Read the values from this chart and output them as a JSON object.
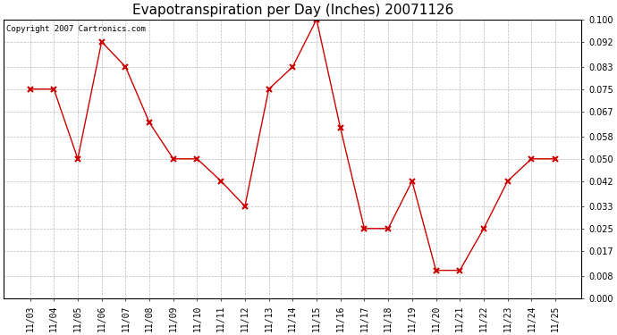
{
  "title": "Evapotranspiration per Day (Inches) 20071126",
  "copyright_text": "Copyright 2007 Cartronics.com",
  "dates": [
    "11/03",
    "11/04",
    "11/05",
    "11/06",
    "11/07",
    "11/08",
    "11/09",
    "11/10",
    "11/11",
    "11/12",
    "11/13",
    "11/14",
    "11/15",
    "11/16",
    "11/17",
    "11/18",
    "11/19",
    "11/20",
    "11/21",
    "11/22",
    "11/23",
    "11/24",
    "11/25"
  ],
  "values": [
    0.075,
    0.075,
    0.05,
    0.092,
    0.083,
    0.063,
    0.05,
    0.05,
    0.042,
    0.033,
    0.075,
    0.083,
    0.1,
    0.061,
    0.025,
    0.025,
    0.042,
    0.01,
    0.01,
    0.025,
    0.042,
    0.05,
    0.05
  ],
  "line_color": "#cc0000",
  "marker": "x",
  "marker_size": 4,
  "marker_linewidth": 1.5,
  "ylim": [
    0.0,
    0.1
  ],
  "yticks": [
    0.0,
    0.008,
    0.017,
    0.025,
    0.033,
    0.042,
    0.05,
    0.058,
    0.067,
    0.075,
    0.083,
    0.092,
    0.1
  ],
  "background_color": "#ffffff",
  "grid_color": "#bbbbbb",
  "title_fontsize": 11,
  "tick_fontsize": 7,
  "copyright_fontsize": 6.5,
  "linewidth": 1.0
}
